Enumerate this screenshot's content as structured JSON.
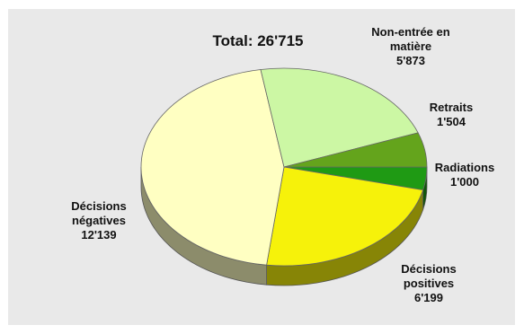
{
  "chart_data": {
    "type": "pie",
    "title": "Total: 26'715",
    "series": [
      {
        "name": "",
        "slices": [
          {
            "label_lines": [
              "Radiations",
              "1'000"
            ],
            "category": "Radiations",
            "value": 1000,
            "display": "1'000",
            "color": "#1f9a14"
          },
          {
            "label_lines": [
              "Décisions",
              "positives",
              "6'199"
            ],
            "category": "Décisions positives",
            "value": 6199,
            "display": "6'199",
            "color": "#f6f20a"
          },
          {
            "label_lines": [
              "Décisions",
              "négatives",
              "12'139"
            ],
            "category": "Décisions négatives",
            "value": 12139,
            "display": "12'139",
            "color": "#ffffc2"
          },
          {
            "label_lines": [
              "Non-entrée en",
              "matière",
              "5'873"
            ],
            "category": "Non-entrée en matière",
            "value": 5873,
            "display": "5'873",
            "color": "#ccf7a4"
          },
          {
            "label_lines": [
              "Retraits",
              "1'504"
            ],
            "category": "Retraits",
            "value": 1504,
            "display": "1'504",
            "color": "#64a41c"
          }
        ]
      }
    ],
    "grid": false,
    "legend": "none (labels placed next to slices)"
  }
}
